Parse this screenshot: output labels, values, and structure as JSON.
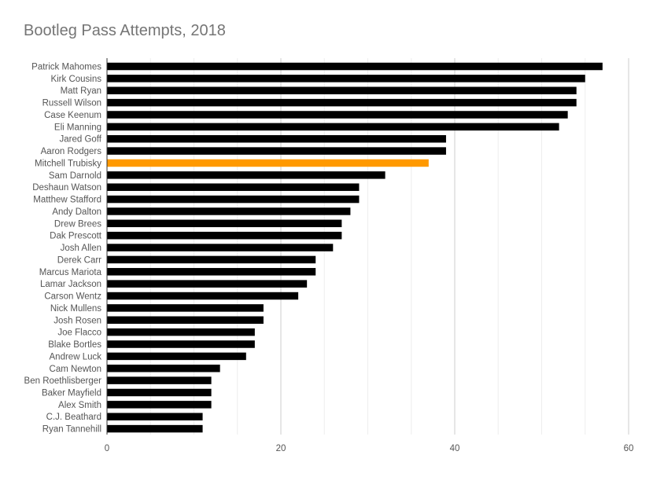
{
  "chart_data": {
    "type": "bar",
    "orientation": "horizontal",
    "title": "Bootleg Pass Attempts, 2018",
    "xlabel": "",
    "ylabel": "",
    "xlim": [
      0,
      60
    ],
    "x_ticks": [
      0,
      20,
      40,
      60
    ],
    "grid": true,
    "bar_color": "#000000",
    "highlight_color": "#FF9900",
    "highlight_category": "Mitchell Trubisky",
    "categories": [
      "Patrick Mahomes",
      "Kirk Cousins",
      "Matt Ryan",
      "Russell Wilson",
      "Case Keenum",
      "Eli Manning",
      "Jared Goff",
      "Aaron Rodgers",
      "Mitchell Trubisky",
      "Sam Darnold",
      "Deshaun Watson",
      "Matthew Stafford",
      "Andy Dalton",
      "Drew Brees",
      "Dak Prescott",
      "Josh Allen",
      "Derek Carr",
      "Marcus Mariota",
      "Lamar Jackson",
      "Carson Wentz",
      "Nick Mullens",
      "Josh Rosen",
      "Joe Flacco",
      "Blake Bortles",
      "Andrew Luck",
      "Cam Newton",
      "Ben Roethlisberger",
      "Baker Mayfield",
      "Alex Smith",
      "C.J. Beathard",
      "Ryan Tannehill"
    ],
    "values": [
      57,
      55,
      54,
      54,
      53,
      52,
      39,
      39,
      37,
      32,
      29,
      29,
      28,
      27,
      27,
      26,
      24,
      24,
      23,
      22,
      18,
      18,
      17,
      17,
      16,
      13,
      12,
      12,
      12,
      11,
      11
    ]
  }
}
